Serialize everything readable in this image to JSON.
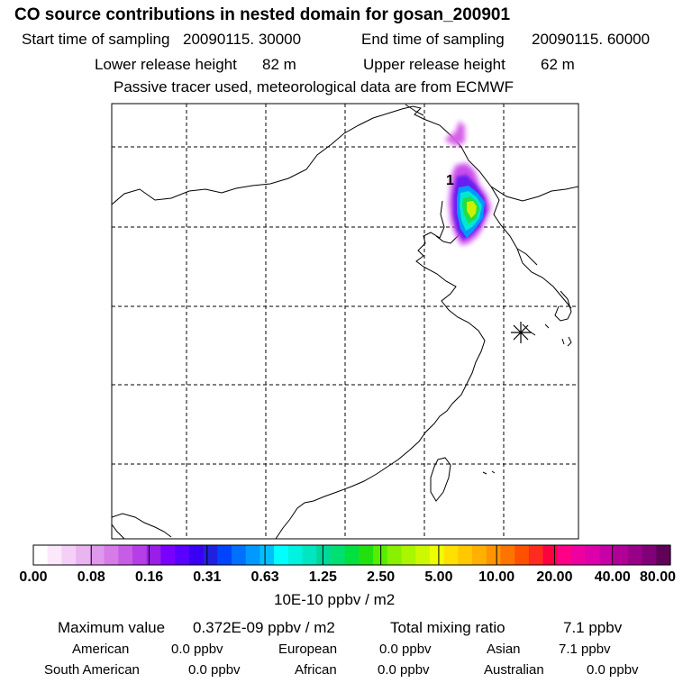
{
  "header": {
    "title": "CO  source contributions in nested domain for gosan_200901",
    "start_label": "Start time of sampling",
    "start_value": "20090115. 30000",
    "end_label": "End time of sampling",
    "end_value": "20090115. 60000",
    "lower_label": "Lower release height",
    "lower_value": "82 m",
    "upper_label": "Upper release height",
    "upper_value": "62 m",
    "note": "Passive tracer used, meteorological data are from ECMWF"
  },
  "chart_data": {
    "type": "heatmap",
    "title": "CO  source contributions in nested domain for gosan_200901",
    "map_label": "1",
    "marker": "receptor-star",
    "colorbar": {
      "unit": "10E-10 ppbv / m2",
      "tick_labels": [
        "0.00",
        "0.08",
        "0.16",
        "0.31",
        "0.63",
        "1.25",
        "2.50",
        "5.00",
        "10.00",
        "20.00",
        "40.00",
        "80.00"
      ],
      "colors": [
        "#ffffff",
        "#fbe8fb",
        "#f4d0f6",
        "#eab4f1",
        "#df99ec",
        "#d77be9",
        "#c75ce6",
        "#b53ee6",
        "#9a1ee8",
        "#7a00ff",
        "#5a00ff",
        "#3a00f5",
        "#2020e0",
        "#0044ff",
        "#0070ff",
        "#0099ff",
        "#00bfff",
        "#00ffff",
        "#00f2e0",
        "#00e6c0",
        "#00d89a",
        "#00e070",
        "#00e040",
        "#22e010",
        "#55ee00",
        "#88f000",
        "#aaf500",
        "#ccf800",
        "#eeff00",
        "#ffe000",
        "#ffc800",
        "#ffb000",
        "#ff9400",
        "#ff7400",
        "#ff5000",
        "#ff2a20",
        "#ff0040",
        "#ff0088",
        "#ee00a0",
        "#dd00aa",
        "#c800a8",
        "#b00098",
        "#980088",
        "#800078",
        "#600058"
      ]
    }
  },
  "footer": {
    "max_label": "Maximum value",
    "max_value": "0.372E-09 ppbv / m2",
    "total_label": "Total mixing ratio",
    "total_value": "7.1 ppbv",
    "regions": [
      {
        "name": "American",
        "value": "0.0 ppbv"
      },
      {
        "name": "European",
        "value": "0.0 ppbv"
      },
      {
        "name": "Asian",
        "value": "7.1 ppbv"
      },
      {
        "name": "South American",
        "value": "0.0 ppbv"
      },
      {
        "name": "African",
        "value": "0.0 ppbv"
      },
      {
        "name": "Australian",
        "value": "0.0 ppbv"
      }
    ]
  }
}
